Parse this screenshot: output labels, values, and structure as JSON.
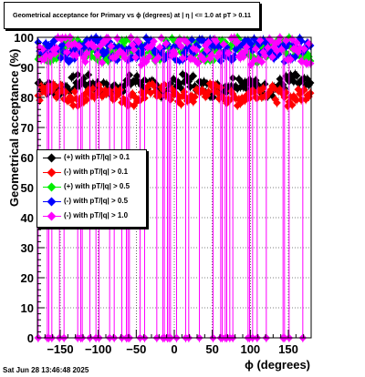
{
  "title": "Geometrical acceptance for Primary vs ϕ (degrees) at |  η  | <= 1.0 at pT > 0.11",
  "timestamp": "Sat Jun 28 13:46:48 2025",
  "chart_data": {
    "type": "scatter",
    "xlabel": "ϕ (degrees)",
    "ylabel": "Geometrical acceptance (%)",
    "xlim": [
      -180,
      180
    ],
    "ylim": [
      0,
      100
    ],
    "xticks": [
      -150,
      -100,
      -50,
      0,
      50,
      100,
      150
    ],
    "xtick_labels": [
      "−150",
      "−100",
      "−50",
      "0",
      "50",
      "100",
      "150"
    ],
    "yticks": [
      0,
      10,
      20,
      30,
      40,
      50,
      60,
      70,
      80,
      90,
      100
    ],
    "ytick_labels": [
      "0",
      "10",
      "20",
      "30",
      "40",
      "50",
      "60",
      "70",
      "80",
      "90",
      "100"
    ],
    "grid": true,
    "legend_position": "middle-left",
    "series": [
      {
        "name": "(+) with pT/|q| > 0.1",
        "color": "#000000",
        "level": 84,
        "spread": 2.5
      },
      {
        "name": "(-) with pT/|q| > 0.1",
        "color": "#ff0000",
        "level": 81,
        "spread": 2.5
      },
      {
        "name": "(+) with pT/|q| > 0.5",
        "color": "#00ee00",
        "level": 96,
        "spread": 3
      },
      {
        "name": "(-) with pT/|q| > 0.5",
        "color": "#0000ff",
        "level": 96,
        "spread": 3
      },
      {
        "name": "(-) with pT/|q| > 1.0",
        "color": "#ff00ff",
        "level": 96,
        "spread": 4,
        "dips": true
      }
    ]
  }
}
